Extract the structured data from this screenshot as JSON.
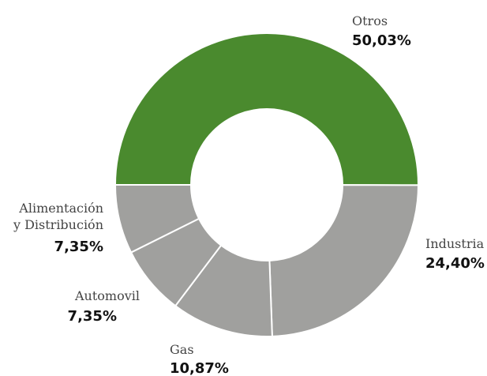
{
  "chart_data": {
    "type": "pie",
    "variant": "donut",
    "unit": "%",
    "slices": [
      {
        "label": "Otros",
        "value": 50.03,
        "value_label": "50,03%",
        "color": "#4a8a2e"
      },
      {
        "label": "Industria",
        "value": 24.4,
        "value_label": "24,40%",
        "color": "#a0a09e"
      },
      {
        "label": "Gas",
        "value": 10.87,
        "value_label": "10,87%",
        "color": "#a0a09e"
      },
      {
        "label": "Automovil",
        "value": 7.35,
        "value_label": "7,35%",
        "color": "#a0a09e"
      },
      {
        "label": "Alimentación y Distribución",
        "label_lines": [
          "Alimentación",
          "y Distribución"
        ],
        "value": 7.35,
        "value_label": "7,35%",
        "color": "#a0a09e"
      }
    ]
  }
}
